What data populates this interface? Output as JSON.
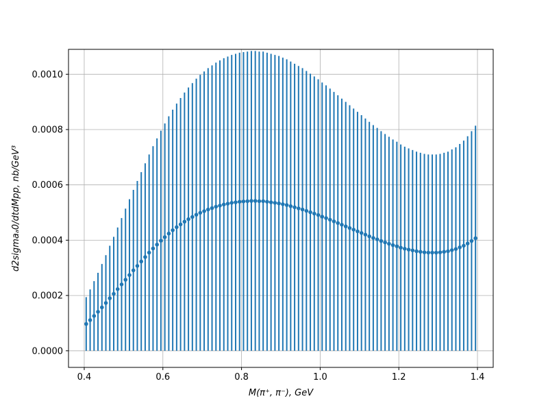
{
  "chart_data": {
    "type": "scatter",
    "title": "",
    "xlabel": "M(π⁺, π⁻), GeV",
    "ylabel": "d2sigmaₐ0/dtdMpp, nb/GeV³",
    "xlim": [
      0.36,
      1.44
    ],
    "ylim": [
      -6e-05,
      0.00109
    ],
    "xticks": [
      "0.4",
      "0.6",
      "0.8",
      "1.0",
      "1.2",
      "1.4"
    ],
    "xtick_values": [
      0.4,
      0.6,
      0.8,
      1.0,
      1.2,
      1.4
    ],
    "yticks": [
      "0.0000",
      "0.0002",
      "0.0004",
      "0.0006",
      "0.0008",
      "0.0010"
    ],
    "ytick_values": [
      0.0,
      0.0002,
      0.0004,
      0.0006,
      0.0008,
      0.001
    ],
    "grid": true,
    "color": "#1f77b4",
    "marker": "circle",
    "series": [
      {
        "x": [
          0.405,
          0.415,
          0.425,
          0.435,
          0.445,
          0.455,
          0.465,
          0.475,
          0.485,
          0.495,
          0.505,
          0.515,
          0.525,
          0.535,
          0.545,
          0.555,
          0.565,
          0.575,
          0.585,
          0.595,
          0.605,
          0.615,
          0.625,
          0.635,
          0.645,
          0.655,
          0.665,
          0.675,
          0.685,
          0.695,
          0.705,
          0.715,
          0.725,
          0.735,
          0.745,
          0.755,
          0.765,
          0.775,
          0.785,
          0.795,
          0.805,
          0.815,
          0.825,
          0.835,
          0.845,
          0.855,
          0.865,
          0.875,
          0.885,
          0.895,
          0.905,
          0.915,
          0.925,
          0.935,
          0.945,
          0.955,
          0.965,
          0.975,
          0.985,
          0.995,
          1.005,
          1.015,
          1.025,
          1.035,
          1.045,
          1.055,
          1.065,
          1.075,
          1.085,
          1.095,
          1.105,
          1.115,
          1.125,
          1.135,
          1.145,
          1.155,
          1.165,
          1.175,
          1.185,
          1.195,
          1.205,
          1.215,
          1.225,
          1.235,
          1.245,
          1.255,
          1.265,
          1.275,
          1.285,
          1.295,
          1.305,
          1.315,
          1.325,
          1.335,
          1.345,
          1.355,
          1.365,
          1.375,
          1.385,
          1.395
        ],
        "y": [
          9.7e-05,
          0.000111,
          0.000126,
          0.000141,
          0.000157,
          0.000173,
          0.00019,
          0.000206,
          0.000223,
          0.00024,
          0.000257,
          0.000274,
          0.000291,
          0.000307,
          0.000323,
          0.000339,
          0.000355,
          0.00037,
          0.000384,
          0.000398,
          0.000411,
          0.000424,
          0.000436,
          0.000447,
          0.000457,
          0.000467,
          0.000476,
          0.000484,
          0.000492,
          0.000499,
          0.000505,
          0.000511,
          0.000516,
          0.000521,
          0.000525,
          0.000529,
          0.000532,
          0.000535,
          0.000537,
          0.000539,
          0.00054,
          0.000541,
          0.000542,
          0.000542,
          0.000541,
          0.000541,
          0.000539,
          0.000537,
          0.000535,
          0.000533,
          0.00053,
          0.000527,
          0.000523,
          0.000519,
          0.000515,
          0.000511,
          0.000506,
          0.000501,
          0.000496,
          0.000491,
          0.000485,
          0.00048,
          0.000474,
          0.000468,
          0.000462,
          0.000456,
          0.00045,
          0.000444,
          0.000438,
          0.000432,
          0.000426,
          0.00042,
          0.000414,
          0.000408,
          0.000403,
          0.000397,
          0.000392,
          0.000387,
          0.000382,
          0.000378,
          0.000373,
          0.000369,
          0.000366,
          0.000363,
          0.00036,
          0.000358,
          0.000356,
          0.000355,
          0.000355,
          0.000355,
          0.000356,
          0.000358,
          0.00036,
          0.000364,
          0.000368,
          0.000374,
          0.00038,
          0.000388,
          0.000397,
          0.000407
        ],
        "yerr_lower": [
          9.7e-05,
          0.000111,
          0.000126,
          0.000141,
          0.000157,
          0.000173,
          0.00019,
          0.000206,
          0.000223,
          0.00024,
          0.000257,
          0.000274,
          0.000291,
          0.000307,
          0.000323,
          0.000339,
          0.000355,
          0.00037,
          0.000384,
          0.000398,
          0.000411,
          0.000424,
          0.000436,
          0.000447,
          0.000457,
          0.000467,
          0.000476,
          0.000484,
          0.000492,
          0.000499,
          0.000505,
          0.000511,
          0.000516,
          0.000521,
          0.000525,
          0.000529,
          0.000532,
          0.000535,
          0.000537,
          0.000539,
          0.00054,
          0.000541,
          0.000542,
          0.000542,
          0.000541,
          0.000541,
          0.000539,
          0.000537,
          0.000535,
          0.000533,
          0.00053,
          0.000527,
          0.000523,
          0.000519,
          0.000515,
          0.000511,
          0.000506,
          0.000501,
          0.000496,
          0.000491,
          0.000485,
          0.00048,
          0.000474,
          0.000468,
          0.000462,
          0.000456,
          0.00045,
          0.000444,
          0.000438,
          0.000432,
          0.000426,
          0.00042,
          0.000414,
          0.000408,
          0.000403,
          0.000397,
          0.000392,
          0.000387,
          0.000382,
          0.000378,
          0.000373,
          0.000369,
          0.000366,
          0.000363,
          0.00036,
          0.000358,
          0.000356,
          0.000355,
          0.000355,
          0.000355,
          0.000356,
          0.000358,
          0.00036,
          0.000364,
          0.000368,
          0.000374,
          0.00038,
          0.000388,
          0.000397,
          0.000407
        ],
        "yerr_upper": [
          9.7e-05,
          0.000111,
          0.000126,
          0.000141,
          0.000157,
          0.000173,
          0.00019,
          0.000206,
          0.000223,
          0.00024,
          0.000257,
          0.000274,
          0.000291,
          0.000307,
          0.000323,
          0.000339,
          0.000355,
          0.00037,
          0.000384,
          0.000398,
          0.000411,
          0.000424,
          0.000436,
          0.000447,
          0.000457,
          0.000467,
          0.000476,
          0.000484,
          0.000492,
          0.000499,
          0.000505,
          0.000511,
          0.000516,
          0.000521,
          0.000525,
          0.000529,
          0.000532,
          0.000535,
          0.000537,
          0.000539,
          0.00054,
          0.000541,
          0.000542,
          0.000542,
          0.000541,
          0.000541,
          0.000539,
          0.000537,
          0.000535,
          0.000533,
          0.00053,
          0.000527,
          0.000523,
          0.000519,
          0.000515,
          0.000511,
          0.000506,
          0.000501,
          0.000496,
          0.000491,
          0.000485,
          0.00048,
          0.000474,
          0.000468,
          0.000462,
          0.000456,
          0.00045,
          0.000444,
          0.000438,
          0.000432,
          0.000426,
          0.00042,
          0.000414,
          0.000408,
          0.000403,
          0.000397,
          0.000392,
          0.000387,
          0.000382,
          0.000378,
          0.000373,
          0.000369,
          0.000366,
          0.000363,
          0.00036,
          0.000358,
          0.000356,
          0.000355,
          0.000355,
          0.000355,
          0.000356,
          0.000358,
          0.00036,
          0.000364,
          0.000368,
          0.000374,
          0.00038,
          0.000388,
          0.000397,
          0.000407
        ]
      }
    ]
  }
}
